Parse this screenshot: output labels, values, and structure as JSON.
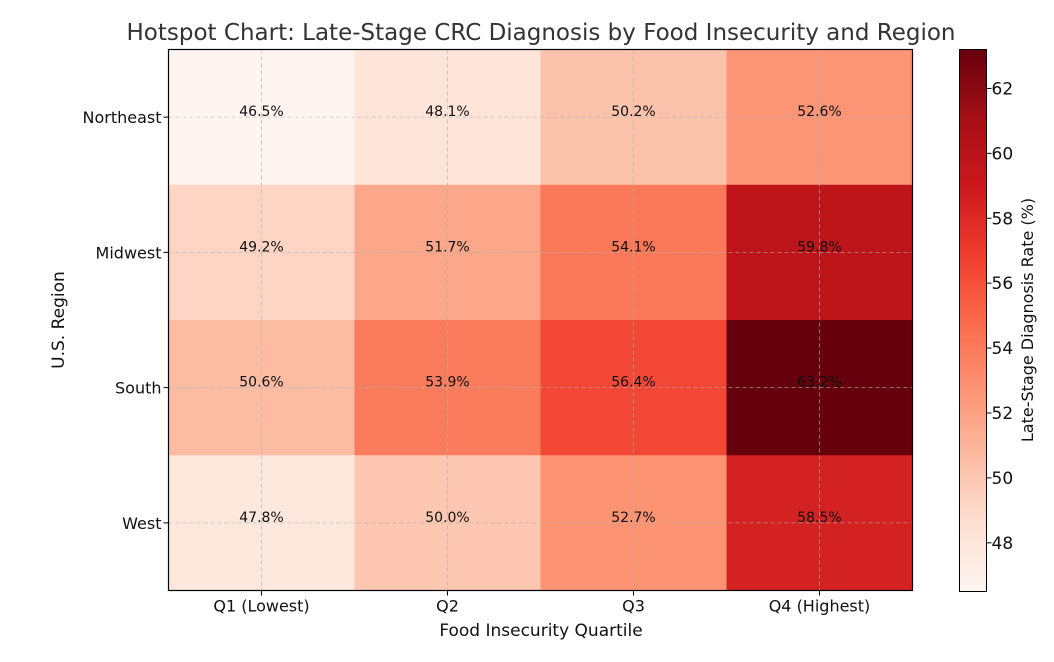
{
  "chart_data": {
    "type": "heatmap",
    "title": "Hotspot Chart: Late-Stage CRC Diagnosis by Food Insecurity and Region",
    "xlabel": "Food Insecurity Quartile",
    "ylabel": "U.S. Region",
    "x_categories": [
      "Q1 (Lowest)",
      "Q2",
      "Q3",
      "Q4 (Highest)"
    ],
    "y_categories": [
      "Northeast",
      "Midwest",
      "South",
      "West"
    ],
    "values": [
      [
        46.5,
        48.1,
        50.2,
        52.6
      ],
      [
        49.2,
        51.7,
        54.1,
        59.8
      ],
      [
        50.6,
        53.9,
        56.4,
        63.2
      ],
      [
        47.8,
        50.0,
        52.7,
        58.5
      ]
    ],
    "cell_labels": [
      [
        "46.5%",
        "48.1%",
        "50.2%",
        "52.6%"
      ],
      [
        "49.2%",
        "51.7%",
        "54.1%",
        "59.8%"
      ],
      [
        "50.6%",
        "53.9%",
        "56.4%",
        "63.2%"
      ],
      [
        "47.8%",
        "50.0%",
        "52.7%",
        "58.5%"
      ]
    ],
    "colorbar": {
      "label": "Late-Stage Diagnosis Rate (%)",
      "range": [
        46.5,
        63.2
      ],
      "ticks": [
        48,
        50,
        52,
        54,
        56,
        58,
        60,
        62
      ],
      "colormap": "Reds"
    },
    "grid": true
  }
}
